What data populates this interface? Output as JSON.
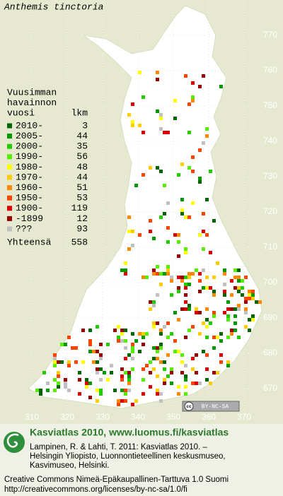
{
  "title": "Anthemis tinctoria",
  "legend": {
    "heading": [
      "Vuusimman",
      "havainnon",
      "vuosi"
    ],
    "count_heading": "lkm",
    "items": [
      {
        "label": "2010-",
        "count": 3,
        "color": "#006600"
      },
      {
        "label": "2005-",
        "count": 44,
        "color": "#009900"
      },
      {
        "label": "2000-",
        "count": 35,
        "color": "#22cc00"
      },
      {
        "label": "1990-",
        "count": 56,
        "color": "#55ee00"
      },
      {
        "label": "1980-",
        "count": 48,
        "color": "#ffff00"
      },
      {
        "label": "1970-",
        "count": 44,
        "color": "#ffcc00"
      },
      {
        "label": "1960-",
        "count": 51,
        "color": "#ff8800"
      },
      {
        "label": "1950-",
        "count": 53,
        "color": "#ff4400"
      },
      {
        "label": "1900-",
        "count": 119,
        "color": "#dd0000"
      },
      {
        "label": "-1899",
        "count": 12,
        "color": "#990000"
      },
      {
        "label": "???",
        "count": 93,
        "color": "#c0c0c0"
      }
    ],
    "total_label": "Yhteensä",
    "total": 558
  },
  "grid": {
    "north": [
      770,
      760,
      750,
      740,
      730,
      720,
      710,
      700,
      690,
      680,
      670
    ],
    "east": [
      310,
      320,
      330,
      340,
      350,
      360,
      370
    ]
  },
  "license_badge": {
    "icon": "cc",
    "text": "BY-NC-SA"
  },
  "footer": {
    "heading": "Kasviatlas 2010, www.luomus.fi/kasviatlas",
    "citation": [
      "Lampinen, R. & Lahti, T. 2011: Kasviatlas 2010. –",
      "Helsingin Yliopisto, Luonnontieteellinen keskusmuseo,",
      "Kasvimuseo, Helsinki."
    ],
    "license": [
      "Creative Commons Nimeä-Epäkaupallinen-Tarttuva 1.0 Suomi",
      "http://creativecommons.org/licenses/by-nc-sa/1.0/fi"
    ]
  }
}
